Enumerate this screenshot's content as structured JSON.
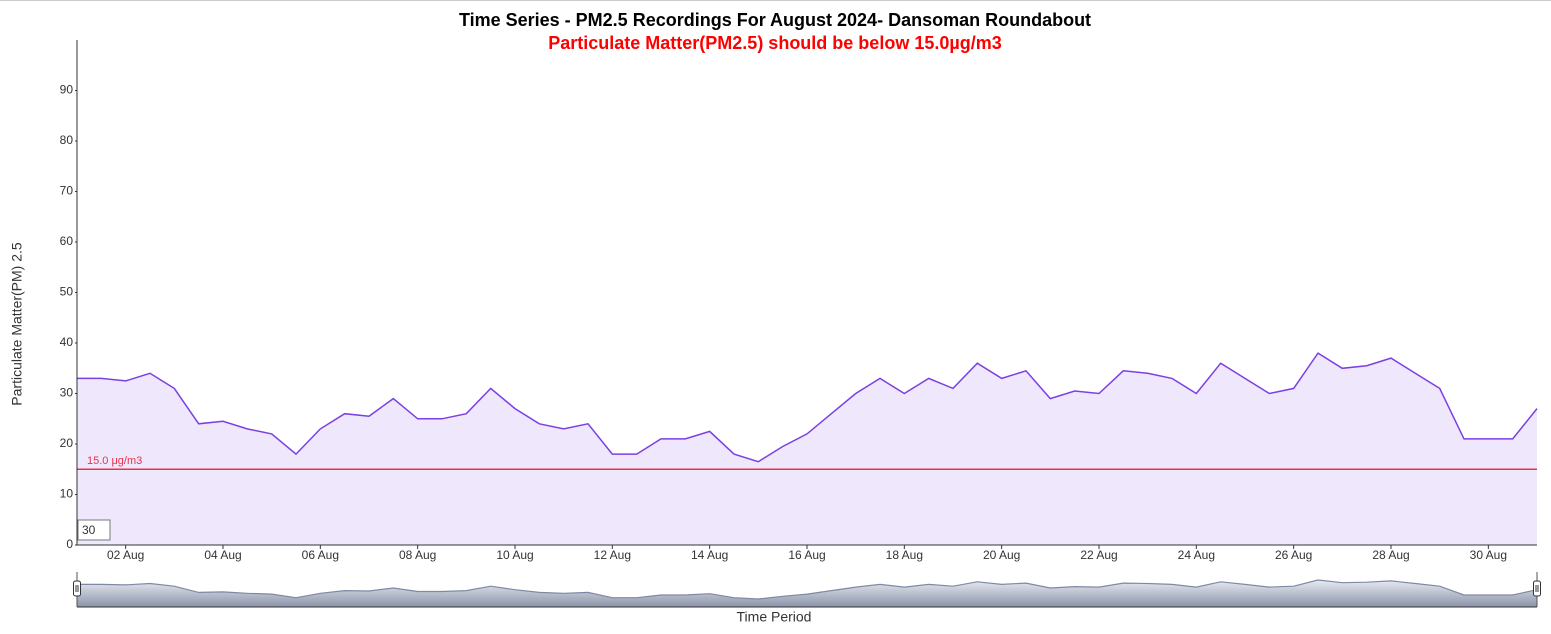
{
  "chart_data": {
    "type": "area",
    "title": "Time Series - PM2.5 Recordings For August 2024- Dansoman Roundabout",
    "subtitle": "Particulate Matter(PM2.5) should be below 15.0µg/m3",
    "y_label": "Particulate Matter(PM) 2.5",
    "x_label": "Time Period",
    "x": [
      1,
      1.5,
      2,
      2.5,
      3,
      3.5,
      4,
      4.5,
      5,
      5.5,
      6,
      6.5,
      7,
      7.5,
      8,
      8.5,
      9,
      9.5,
      10,
      10.5,
      11,
      11.5,
      12,
      12.5,
      13,
      13.5,
      14,
      14.5,
      15,
      15.5,
      16,
      16.5,
      17,
      17.5,
      18,
      18.5,
      19,
      19.5,
      20,
      20.5,
      21,
      21.5,
      22,
      22.5,
      23,
      23.5,
      24,
      24.5,
      25,
      25.5,
      26,
      26.5,
      27,
      27.5,
      28,
      28.5,
      29,
      29.5,
      30,
      30.5,
      31
    ],
    "series": [
      {
        "color": "#7b3fe4",
        "fill": "#efe8fc",
        "values": [
          33,
          33,
          32.5,
          34,
          31,
          24,
          24.5,
          23,
          22,
          18,
          23,
          26,
          25.5,
          29,
          25,
          25,
          26,
          31,
          27,
          24,
          23,
          24,
          18,
          18,
          21,
          21,
          22.5,
          18,
          16.5,
          19.5,
          22,
          26,
          30,
          33,
          30,
          33,
          31,
          36,
          33,
          34.5,
          29,
          30.5,
          30,
          34.5,
          34,
          33,
          30,
          36,
          33,
          30,
          31,
          38,
          35,
          35.5,
          37,
          34,
          31,
          21,
          21,
          21,
          27
        ]
      }
    ],
    "threshold": {
      "value": 15,
      "label": "15.0 μg/m3",
      "color": "#e8334a"
    },
    "xlim": [
      1,
      31
    ],
    "ylim": [
      0,
      100
    ],
    "yticks": [
      0,
      10,
      20,
      30,
      40,
      50,
      60,
      70,
      80,
      90
    ],
    "xticks": [
      {
        "value": 2,
        "label": "02 Aug"
      },
      {
        "value": 4,
        "label": "04 Aug"
      },
      {
        "value": 6,
        "label": "06 Aug"
      },
      {
        "value": 8,
        "label": "08 Aug"
      },
      {
        "value": 10,
        "label": "10 Aug"
      },
      {
        "value": 12,
        "label": "12 Aug"
      },
      {
        "value": 14,
        "label": "14 Aug"
      },
      {
        "value": 16,
        "label": "16 Aug"
      },
      {
        "value": 18,
        "label": "18 Aug"
      },
      {
        "value": 20,
        "label": "20 Aug"
      },
      {
        "value": 22,
        "label": "22 Aug"
      },
      {
        "value": 24,
        "label": "24 Aug"
      },
      {
        "value": 26,
        "label": "26 Aug"
      },
      {
        "value": 28,
        "label": "28 Aug"
      },
      {
        "value": 30,
        "label": "30 Aug"
      }
    ],
    "navigator": true,
    "input_value": "30"
  }
}
